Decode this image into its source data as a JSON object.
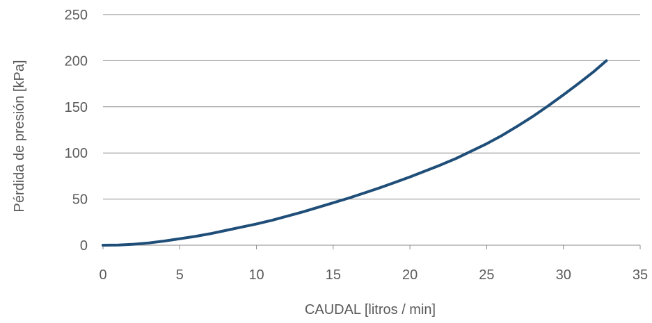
{
  "chart_data": {
    "type": "line",
    "title": "",
    "xlabel": "CAUDAL [litros / min]",
    "ylabel": "Pérdida de presión [kPa]",
    "xlim": [
      0,
      35
    ],
    "ylim": [
      0,
      250
    ],
    "xticks": [
      "0",
      "5",
      "10",
      "15",
      "20",
      "25",
      "30",
      "35"
    ],
    "yticks": [
      "0",
      "50",
      "100",
      "150",
      "200",
      "250"
    ],
    "grid": "horizontal",
    "series": [
      {
        "color": "#1f4e79",
        "points": [
          {
            "x": 0,
            "y": 0
          },
          {
            "x": 1,
            "y": 0.2
          },
          {
            "x": 2,
            "y": 1
          },
          {
            "x": 3,
            "y": 2.5
          },
          {
            "x": 4,
            "y": 4.5
          },
          {
            "x": 5,
            "y": 7
          },
          {
            "x": 6,
            "y": 9.5
          },
          {
            "x": 7,
            "y": 12.5
          },
          {
            "x": 8,
            "y": 16
          },
          {
            "x": 9,
            "y": 19.5
          },
          {
            "x": 10,
            "y": 23
          },
          {
            "x": 11,
            "y": 27
          },
          {
            "x": 12,
            "y": 31.5
          },
          {
            "x": 13,
            "y": 36
          },
          {
            "x": 14,
            "y": 41
          },
          {
            "x": 15,
            "y": 46
          },
          {
            "x": 16,
            "y": 51
          },
          {
            "x": 17,
            "y": 56.5
          },
          {
            "x": 18,
            "y": 62
          },
          {
            "x": 19,
            "y": 68
          },
          {
            "x": 20,
            "y": 74
          },
          {
            "x": 21,
            "y": 80.5
          },
          {
            "x": 22,
            "y": 87
          },
          {
            "x": 23,
            "y": 94
          },
          {
            "x": 24,
            "y": 102
          },
          {
            "x": 25,
            "y": 110
          },
          {
            "x": 26,
            "y": 119
          },
          {
            "x": 27,
            "y": 129
          },
          {
            "x": 28,
            "y": 139.5
          },
          {
            "x": 29,
            "y": 151
          },
          {
            "x": 30,
            "y": 163
          },
          {
            "x": 31,
            "y": 175.5
          },
          {
            "x": 32,
            "y": 188.5
          },
          {
            "x": 32.8,
            "y": 200
          }
        ]
      }
    ]
  }
}
